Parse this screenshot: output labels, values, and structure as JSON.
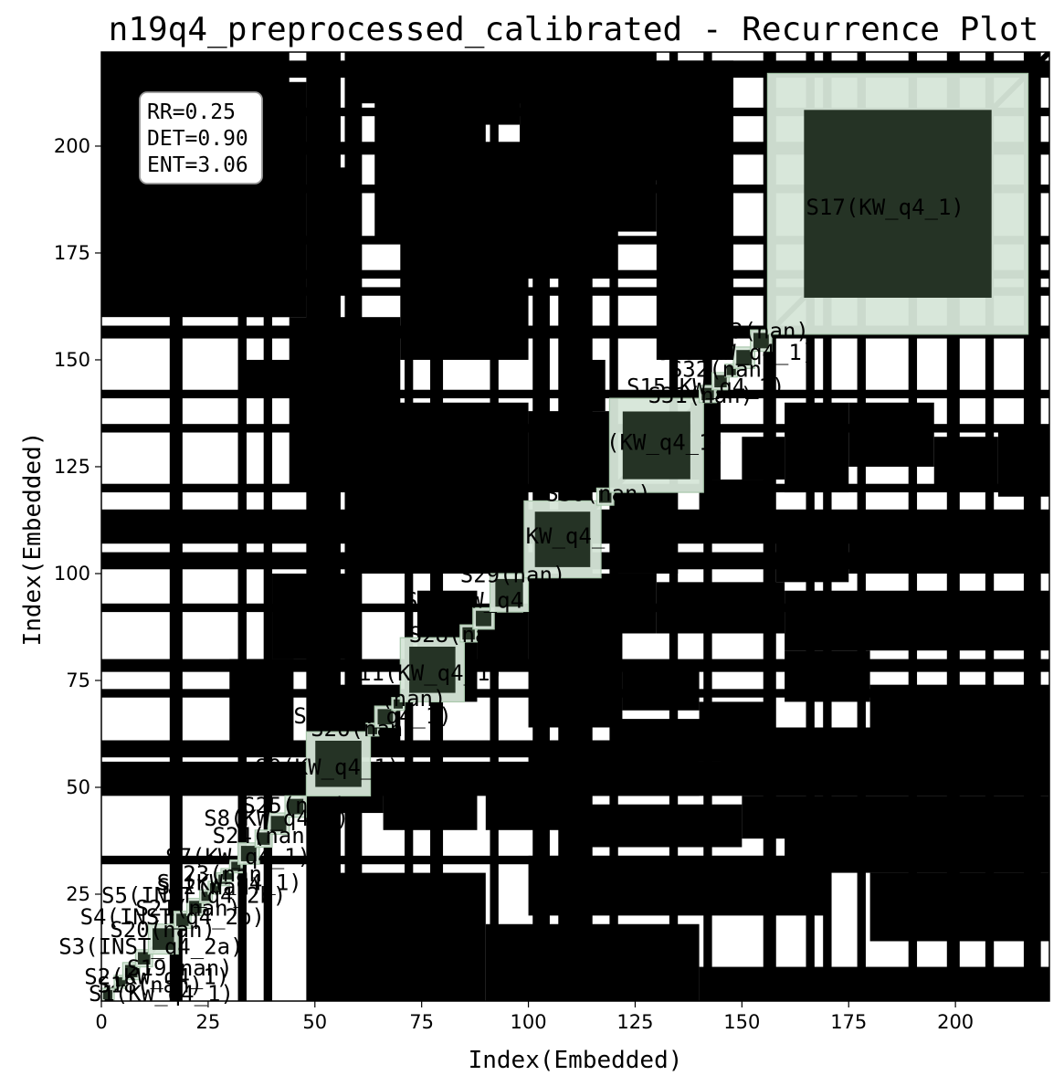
{
  "chart_data": {
    "type": "heatmap",
    "title": "n19q4_preprocessed_calibrated - Recurrence Plot",
    "xlabel": "Index(Embedded)",
    "ylabel": "Index(Embedded)",
    "xlim": [
      0,
      222
    ],
    "ylim": [
      0,
      222
    ],
    "x_ticks": [
      0,
      25,
      50,
      75,
      100,
      125,
      150,
      175,
      200
    ],
    "y_ticks": [
      25,
      50,
      75,
      100,
      125,
      150,
      175,
      200
    ],
    "grid": false,
    "stats": {
      "rr": "RR=0.25",
      "det": "DET=0.90",
      "ent": "ENT=3.06"
    },
    "colors": {
      "recurrence": "#000000",
      "segment_fill": "#d6e6d8",
      "segment_recurrence": "#253325",
      "segment_edge": "#a9c8ac"
    },
    "recurrence_blocks": [
      [
        32,
        34,
        0,
        222
      ],
      [
        48,
        55,
        0,
        222
      ],
      [
        53,
        56,
        0,
        222
      ],
      [
        57,
        61,
        0,
        222
      ],
      [
        71,
        73,
        0,
        222
      ],
      [
        77,
        80,
        0,
        222
      ],
      [
        91,
        93,
        0,
        222
      ],
      [
        101,
        105,
        0,
        222
      ],
      [
        107,
        115,
        0,
        222
      ],
      [
        119,
        121,
        0,
        222
      ],
      [
        133,
        135,
        0,
        222
      ],
      [
        141,
        143,
        0,
        222
      ],
      [
        155,
        158,
        0,
        222
      ],
      [
        165,
        167,
        0,
        222
      ],
      [
        169,
        171,
        0,
        222
      ],
      [
        177,
        179,
        0,
        222
      ],
      [
        189,
        191,
        0,
        222
      ],
      [
        198,
        201,
        0,
        222
      ],
      [
        207,
        209,
        0,
        222
      ],
      [
        216,
        220,
        0,
        222
      ],
      [
        16,
        19,
        0,
        222
      ],
      [
        38,
        40,
        0,
        222
      ],
      [
        32,
        34,
        0,
        222
      ],
      [
        48,
        55,
        0,
        222
      ],
      [
        53,
        56,
        0,
        222
      ],
      [
        57,
        61,
        0,
        222
      ],
      [
        0,
        222,
        32,
        34
      ],
      [
        0,
        222,
        48,
        55
      ],
      [
        0,
        222,
        53,
        56
      ],
      [
        0,
        222,
        57,
        61
      ],
      [
        0,
        222,
        71,
        73
      ],
      [
        0,
        222,
        77,
        80
      ],
      [
        0,
        222,
        91,
        93
      ],
      [
        0,
        222,
        101,
        105
      ],
      [
        0,
        222,
        107,
        115
      ],
      [
        0,
        222,
        119,
        121
      ],
      [
        0,
        222,
        133,
        135
      ],
      [
        0,
        222,
        141,
        143
      ],
      [
        0,
        222,
        155,
        158
      ],
      [
        0,
        222,
        165,
        167
      ],
      [
        0,
        222,
        169,
        171
      ],
      [
        0,
        222,
        177,
        179
      ],
      [
        0,
        222,
        189,
        191
      ],
      [
        0,
        222,
        198,
        201
      ],
      [
        0,
        222,
        207,
        209
      ],
      [
        0,
        222,
        216,
        220
      ],
      [
        32,
        48,
        160,
        215
      ],
      [
        34,
        46,
        142,
        150
      ],
      [
        54,
        60,
        166,
        195
      ],
      [
        64,
        72,
        178,
        212
      ],
      [
        72,
        90,
        200,
        219
      ],
      [
        80,
        88,
        160,
        198
      ],
      [
        88,
        98,
        205,
        222
      ],
      [
        98,
        120,
        170,
        219
      ],
      [
        100,
        120,
        120,
        138
      ],
      [
        110,
        118,
        138,
        150
      ],
      [
        120,
        135,
        192,
        219
      ],
      [
        120,
        135,
        100,
        120
      ],
      [
        130,
        148,
        150,
        220
      ],
      [
        138,
        145,
        122,
        140
      ],
      [
        150,
        160,
        122,
        132
      ],
      [
        160,
        175,
        119,
        140
      ],
      [
        175,
        195,
        125,
        140
      ],
      [
        195,
        210,
        120,
        132
      ],
      [
        210,
        222,
        118,
        134
      ],
      [
        158,
        175,
        98,
        112
      ],
      [
        175,
        200,
        100,
        112
      ],
      [
        200,
        222,
        100,
        110
      ],
      [
        52,
        70,
        58,
        74
      ],
      [
        74,
        88,
        70,
        96
      ],
      [
        88,
        100,
        78,
        92
      ],
      [
        100,
        122,
        64,
        86
      ],
      [
        122,
        140,
        68,
        78
      ],
      [
        140,
        156,
        56,
        70
      ],
      [
        160,
        180,
        70,
        82
      ],
      [
        180,
        222,
        62,
        74
      ],
      [
        145,
        222,
        50,
        64
      ],
      [
        100,
        140,
        48,
        60
      ],
      [
        54,
        66,
        44,
        52
      ],
      [
        66,
        88,
        40,
        52
      ],
      [
        90,
        110,
        40,
        50
      ],
      [
        110,
        150,
        36,
        46
      ],
      [
        150,
        190,
        38,
        48
      ],
      [
        190,
        222,
        38,
        48
      ],
      [
        100,
        130,
        86,
        100
      ],
      [
        130,
        160,
        86,
        98
      ],
      [
        160,
        200,
        82,
        96
      ],
      [
        200,
        222,
        82,
        96
      ],
      [
        0,
        44,
        160,
        222
      ],
      [
        44,
        70,
        120,
        160
      ],
      [
        70,
        100,
        150,
        200
      ],
      [
        98,
        130,
        180,
        222
      ],
      [
        60,
        100,
        100,
        140
      ],
      [
        40,
        60,
        80,
        100
      ],
      [
        30,
        45,
        60,
        80
      ],
      [
        140,
        156,
        110,
        122
      ],
      [
        50,
        90,
        0,
        30
      ],
      [
        90,
        140,
        0,
        18
      ],
      [
        140,
        222,
        0,
        8
      ],
      [
        180,
        222,
        14,
        30
      ],
      [
        100,
        170,
        20,
        34
      ],
      [
        160,
        222,
        30,
        40
      ],
      [
        120,
        150,
        56,
        66
      ],
      [
        60,
        100,
        210,
        222
      ]
    ],
    "segments": [
      {
        "label": "S1(KW_q4_1)",
        "x0": 0,
        "x1": 3,
        "y0": 0,
        "y1": 3,
        "lx": -3,
        "ly": 0
      },
      {
        "label": "S18(nan)",
        "x0": 3,
        "x1": 6,
        "y0": 3,
        "y1": 6,
        "lx": -1,
        "ly": 2
      },
      {
        "label": "S2(KW_q4_1)",
        "x0": 5,
        "x1": 9,
        "y0": 5,
        "y1": 9,
        "lx": -4,
        "ly": 4
      },
      {
        "label": "S19(nan)",
        "x0": 8,
        "x1": 12,
        "y0": 8,
        "y1": 12,
        "lx": 6,
        "ly": 6
      },
      {
        "label": "S3(INST_q4_2a)",
        "x0": 11,
        "x1": 18,
        "y0": 11,
        "y1": 18,
        "lx": -10,
        "ly": 11
      },
      {
        "label": "S20(nan)",
        "x0": 17,
        "x1": 21,
        "y0": 17,
        "y1": 21,
        "lx": 2,
        "ly": 15
      },
      {
        "label": "S4(INST_q4_2b)",
        "x0": 20,
        "x1": 24,
        "y0": 20,
        "y1": 24,
        "lx": -5,
        "ly": 18
      },
      {
        "label": "S21(nan)",
        "x0": 23,
        "x1": 26,
        "y0": 23,
        "y1": 26,
        "lx": 8,
        "ly": 20
      },
      {
        "label": "S5(INST_q4_2b)",
        "x0": 25,
        "x1": 28,
        "y0": 25,
        "y1": 28,
        "lx": 0,
        "ly": 23
      },
      {
        "label": "S22(nan)",
        "x0": 27,
        "x1": 30,
        "y0": 27,
        "y1": 30,
        "lx": 13,
        "ly": 25
      },
      {
        "label": "S6(KW_q4_1)",
        "x0": 28,
        "x1": 31,
        "y0": 28,
        "y1": 31,
        "lx": 13,
        "ly": 26
      },
      {
        "label": "S23(nan)",
        "x0": 30,
        "x1": 33,
        "y0": 30,
        "y1": 33,
        "lx": 16,
        "ly": 28
      },
      {
        "label": "S7(KW_q4_1)",
        "x0": 32,
        "x1": 37,
        "y0": 32,
        "y1": 37,
        "lx": 15,
        "ly": 32
      },
      {
        "label": "S24(nan)",
        "x0": 36,
        "x1": 40,
        "y0": 36,
        "y1": 40,
        "lx": 26,
        "ly": 37
      },
      {
        "label": "S8(KW_q4_1)",
        "x0": 39,
        "x1": 44,
        "y0": 39,
        "y1": 44,
        "lx": 24,
        "ly": 41
      },
      {
        "label": "S25(nan)",
        "x0": 43,
        "x1": 48,
        "y0": 43,
        "y1": 48,
        "lx": 33,
        "ly": 44
      },
      {
        "label": "S9(KW_q4_1)",
        "x0": 48,
        "x1": 63,
        "y0": 48,
        "y1": 63,
        "lx": 36,
        "ly": 53
      },
      {
        "label": "S26(nan)",
        "x0": 62,
        "x1": 65,
        "y0": 62,
        "y1": 65,
        "lx": 49,
        "ly": 62
      },
      {
        "label": "S10(KW_q4_1)",
        "x0": 64,
        "x1": 69,
        "y0": 64,
        "y1": 69,
        "lx": 45,
        "ly": 65
      },
      {
        "label": "S27(nan)",
        "x0": 68,
        "x1": 71,
        "y0": 68,
        "y1": 71,
        "lx": 56,
        "ly": 69
      },
      {
        "label": "S11(KW_q4_1)",
        "x0": 70,
        "x1": 85,
        "y0": 70,
        "y1": 85,
        "lx": 57,
        "ly": 75
      },
      {
        "label": "S28(nan)",
        "x0": 84,
        "x1": 88,
        "y0": 84,
        "y1": 88,
        "lx": 72,
        "ly": 84
      },
      {
        "label": "S12(KW_q4_1)",
        "x0": 87,
        "x1": 92,
        "y0": 87,
        "y1": 92,
        "lx": 71,
        "ly": 92
      },
      {
        "label": "S29(nan)",
        "x0": 91,
        "x1": 100,
        "y0": 91,
        "y1": 100,
        "lx": 84,
        "ly": 98
      },
      {
        "label": "S13(KW_q4_1)",
        "x0": 99,
        "x1": 117,
        "y0": 99,
        "y1": 117,
        "lx": 87,
        "ly": 107
      },
      {
        "label": "S30(nan)",
        "x0": 116,
        "x1": 120,
        "y0": 116,
        "y1": 120,
        "lx": 104,
        "ly": 117
      },
      {
        "label": "S14(KW_q4_1)",
        "x0": 119,
        "x1": 141,
        "y0": 119,
        "y1": 141,
        "lx": 109,
        "ly": 129
      },
      {
        "label": "S31(nan)",
        "x0": 140,
        "x1": 144,
        "y0": 140,
        "y1": 144,
        "lx": 128,
        "ly": 140
      },
      {
        "label": "S15(KW_q4_1)",
        "x0": 143,
        "x1": 147,
        "y0": 143,
        "y1": 147,
        "lx": 123,
        "ly": 142
      },
      {
        "label": "S32(nan)",
        "x0": 146,
        "x1": 149,
        "y0": 146,
        "y1": 149,
        "lx": 133,
        "ly": 146
      },
      {
        "label": "S16(KW_q4_1)",
        "x0": 148,
        "x1": 153,
        "y0": 148,
        "y1": 153,
        "lx": 130,
        "ly": 150
      },
      {
        "label": "S33(nan)",
        "x0": 152,
        "x1": 157,
        "y0": 152,
        "y1": 157,
        "lx": 141,
        "ly": 155
      },
      {
        "label": "S17(KW_q4_1)",
        "x0": 156,
        "x1": 217,
        "y0": 156,
        "y1": 217,
        "lx": 165,
        "ly": 184
      }
    ]
  }
}
